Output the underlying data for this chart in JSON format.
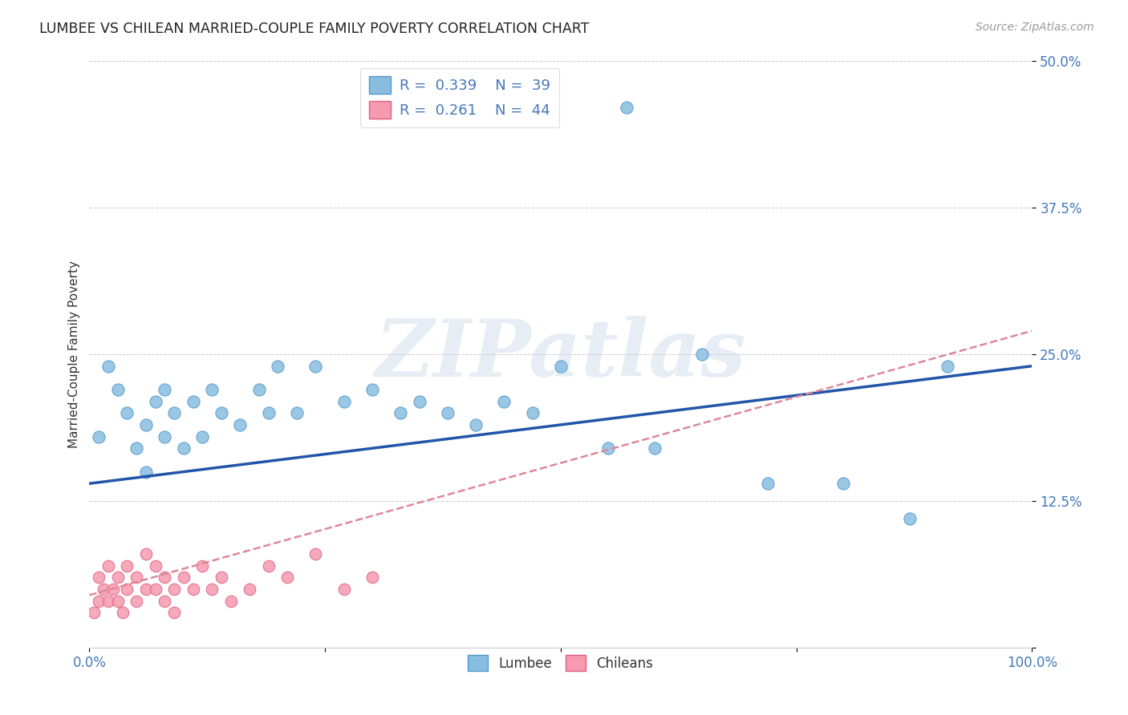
{
  "title": "LUMBEE VS CHILEAN MARRIED-COUPLE FAMILY POVERTY CORRELATION CHART",
  "source": "Source: ZipAtlas.com",
  "ylabel": "Married-Couple Family Poverty",
  "xlabel": "",
  "xlim": [
    0,
    100
  ],
  "ylim": [
    0,
    50
  ],
  "xticks": [
    0,
    25,
    50,
    75,
    100
  ],
  "xticklabels": [
    "0.0%",
    "",
    "",
    "",
    "100.0%"
  ],
  "yticks": [
    0,
    12.5,
    25,
    37.5,
    50
  ],
  "yticklabels": [
    "",
    "12.5%",
    "25.0%",
    "37.5%",
    "50.0%"
  ],
  "grid_color": "#cccccc",
  "background_color": "#ffffff",
  "watermark_text": "ZIPatlas",
  "lumbee_color": "#89bde0",
  "chilean_color": "#f59ab0",
  "lumbee_edge_color": "#5599cc",
  "chilean_edge_color": "#e06080",
  "lumbee_line_color": "#2255aa",
  "chilean_line_dash_color": "#dd8899",
  "lumbee_x": [
    1,
    2,
    3,
    4,
    5,
    6,
    6,
    7,
    8,
    8,
    9,
    10,
    11,
    12,
    13,
    14,
    16,
    18,
    19,
    20,
    22,
    24,
    27,
    30,
    33,
    35,
    38,
    41,
    44,
    47,
    50,
    55,
    57,
    60,
    65,
    72,
    80,
    87,
    91
  ],
  "lumbee_y": [
    18,
    24,
    22,
    20,
    17,
    19,
    15,
    21,
    18,
    22,
    20,
    17,
    21,
    18,
    22,
    20,
    19,
    22,
    20,
    24,
    20,
    24,
    21,
    22,
    20,
    21,
    20,
    19,
    21,
    20,
    24,
    17,
    46,
    17,
    25,
    14,
    14,
    11,
    24
  ],
  "chilean_x": [
    0.5,
    1,
    1,
    1.5,
    2,
    2,
    2.5,
    3,
    3,
    3.5,
    4,
    4,
    5,
    5,
    6,
    6,
    7,
    7,
    8,
    8,
    9,
    9,
    10,
    11,
    12,
    13,
    14,
    15,
    17,
    19,
    21,
    24,
    27,
    30
  ],
  "chilean_y": [
    3,
    4,
    6,
    5,
    4,
    7,
    5,
    4,
    6,
    3,
    5,
    7,
    4,
    6,
    5,
    8,
    7,
    5,
    4,
    6,
    5,
    3,
    6,
    5,
    7,
    5,
    6,
    4,
    5,
    7,
    6,
    8,
    5,
    6
  ],
  "lumbee_reg_x0": 0,
  "lumbee_reg_y0": 14.0,
  "lumbee_reg_x1": 100,
  "lumbee_reg_y1": 24.0,
  "chilean_reg_x0": 0,
  "chilean_reg_y0": 4.5,
  "chilean_reg_x1": 100,
  "chilean_reg_y1": 27.0
}
